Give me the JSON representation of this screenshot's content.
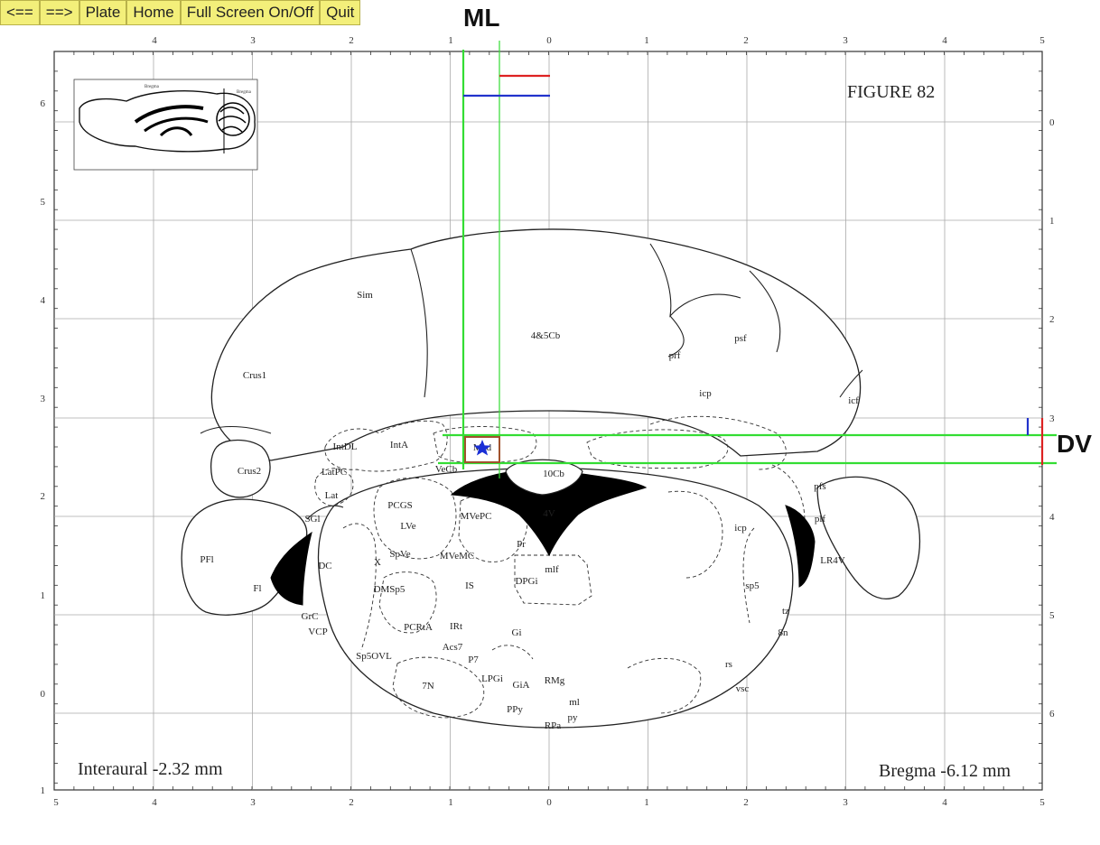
{
  "toolbar": {
    "prev_label": "<==",
    "next_label": "==>",
    "plate_label": "Plate",
    "home_label": "Home",
    "fullscreen_label": "Full Screen On/Off",
    "quit_label": "Quit"
  },
  "axis_labels": {
    "ml": "ML",
    "dv": "DV"
  },
  "plate": {
    "figure_title": "FIGURE 82",
    "interaural": "Interaural -2.32 mm",
    "bregma": "Bregma -6.12 mm"
  },
  "ticks": {
    "top": [
      "4",
      "3",
      "2",
      "1",
      "0",
      "1",
      "2",
      "3",
      "4",
      "5"
    ],
    "bottom": [
      "5",
      "4",
      "3",
      "2",
      "1",
      "0",
      "1",
      "2",
      "3",
      "4",
      "5"
    ],
    "left": [
      "6",
      "5",
      "4",
      "3",
      "2",
      "1",
      "0",
      "1"
    ],
    "right": [
      "0",
      "1",
      "2",
      "3",
      "4",
      "5",
      "6"
    ]
  },
  "regions": [
    {
      "id": "Sim",
      "text": "Sim"
    },
    {
      "id": "4-5Cb",
      "text": "4&5Cb"
    },
    {
      "id": "psf",
      "text": "psf"
    },
    {
      "id": "prf",
      "text": "prf"
    },
    {
      "id": "Crus1",
      "text": "Crus1"
    },
    {
      "id": "icp-top",
      "text": "icp"
    },
    {
      "id": "icf",
      "text": "icf"
    },
    {
      "id": "IntDL",
      "text": "IntDL"
    },
    {
      "id": "IntA",
      "text": "IntA"
    },
    {
      "id": "Med",
      "text": "Med"
    },
    {
      "id": "LatPC",
      "text": "LatPC"
    },
    {
      "id": "Crus2",
      "text": "Crus2"
    },
    {
      "id": "VeCb",
      "text": "VeCb"
    },
    {
      "id": "10Cb",
      "text": "10Cb"
    },
    {
      "id": "Lat",
      "text": "Lat"
    },
    {
      "id": "pfs",
      "text": "pfs"
    },
    {
      "id": "PCGS",
      "text": "PCGS"
    },
    {
      "id": "MVePC",
      "text": "MVePC"
    },
    {
      "id": "4V",
      "text": "4V"
    },
    {
      "id": "SGl",
      "text": "SGl"
    },
    {
      "id": "LVe",
      "text": "LVe"
    },
    {
      "id": "plf",
      "text": "plf"
    },
    {
      "id": "icp",
      "text": "icp"
    },
    {
      "id": "Pr",
      "text": "Pr"
    },
    {
      "id": "PFl",
      "text": "PFl"
    },
    {
      "id": "SpVe",
      "text": "SpVe"
    },
    {
      "id": "MVeMC",
      "text": "MVeMC"
    },
    {
      "id": "X",
      "text": "X"
    },
    {
      "id": "DC",
      "text": "DC"
    },
    {
      "id": "mlf",
      "text": "mlf"
    },
    {
      "id": "LR4V",
      "text": "LR4V"
    },
    {
      "id": "DMSp5",
      "text": "DMSp5"
    },
    {
      "id": "IS",
      "text": "IS"
    },
    {
      "id": "DPGi",
      "text": "DPGi"
    },
    {
      "id": "Fl",
      "text": "Fl"
    },
    {
      "id": "sp5",
      "text": "sp5"
    },
    {
      "id": "GrC",
      "text": "GrC"
    },
    {
      "id": "tz",
      "text": "tz"
    },
    {
      "id": "VCP",
      "text": "VCP"
    },
    {
      "id": "PCRtA",
      "text": "PCRtA"
    },
    {
      "id": "IRt",
      "text": "IRt"
    },
    {
      "id": "Gi",
      "text": "Gi"
    },
    {
      "id": "8n",
      "text": "8n"
    },
    {
      "id": "Acs7",
      "text": "Acs7"
    },
    {
      "id": "Sp5OVL",
      "text": "Sp5OVL"
    },
    {
      "id": "P7",
      "text": "P7"
    },
    {
      "id": "rs",
      "text": "rs"
    },
    {
      "id": "LPGi",
      "text": "LPGi"
    },
    {
      "id": "RMg",
      "text": "RMg"
    },
    {
      "id": "7N",
      "text": "7N"
    },
    {
      "id": "GiA",
      "text": "GiA"
    },
    {
      "id": "vsc",
      "text": "vsc"
    },
    {
      "id": "ml",
      "text": "ml"
    },
    {
      "id": "PPy",
      "text": "PPy"
    },
    {
      "id": "py",
      "text": "py"
    },
    {
      "id": "RPa",
      "text": "RPa"
    }
  ],
  "inset": {
    "labels": [
      "Bregma",
      "Bregma"
    ]
  },
  "colors": {
    "toolbar_bg": "#f3ef7a",
    "guide_green": "#33dd33",
    "marker_red": "#dd2222",
    "marker_blue": "#2233cc",
    "target_box": "#a0522d",
    "star": "#1a2fd6"
  }
}
